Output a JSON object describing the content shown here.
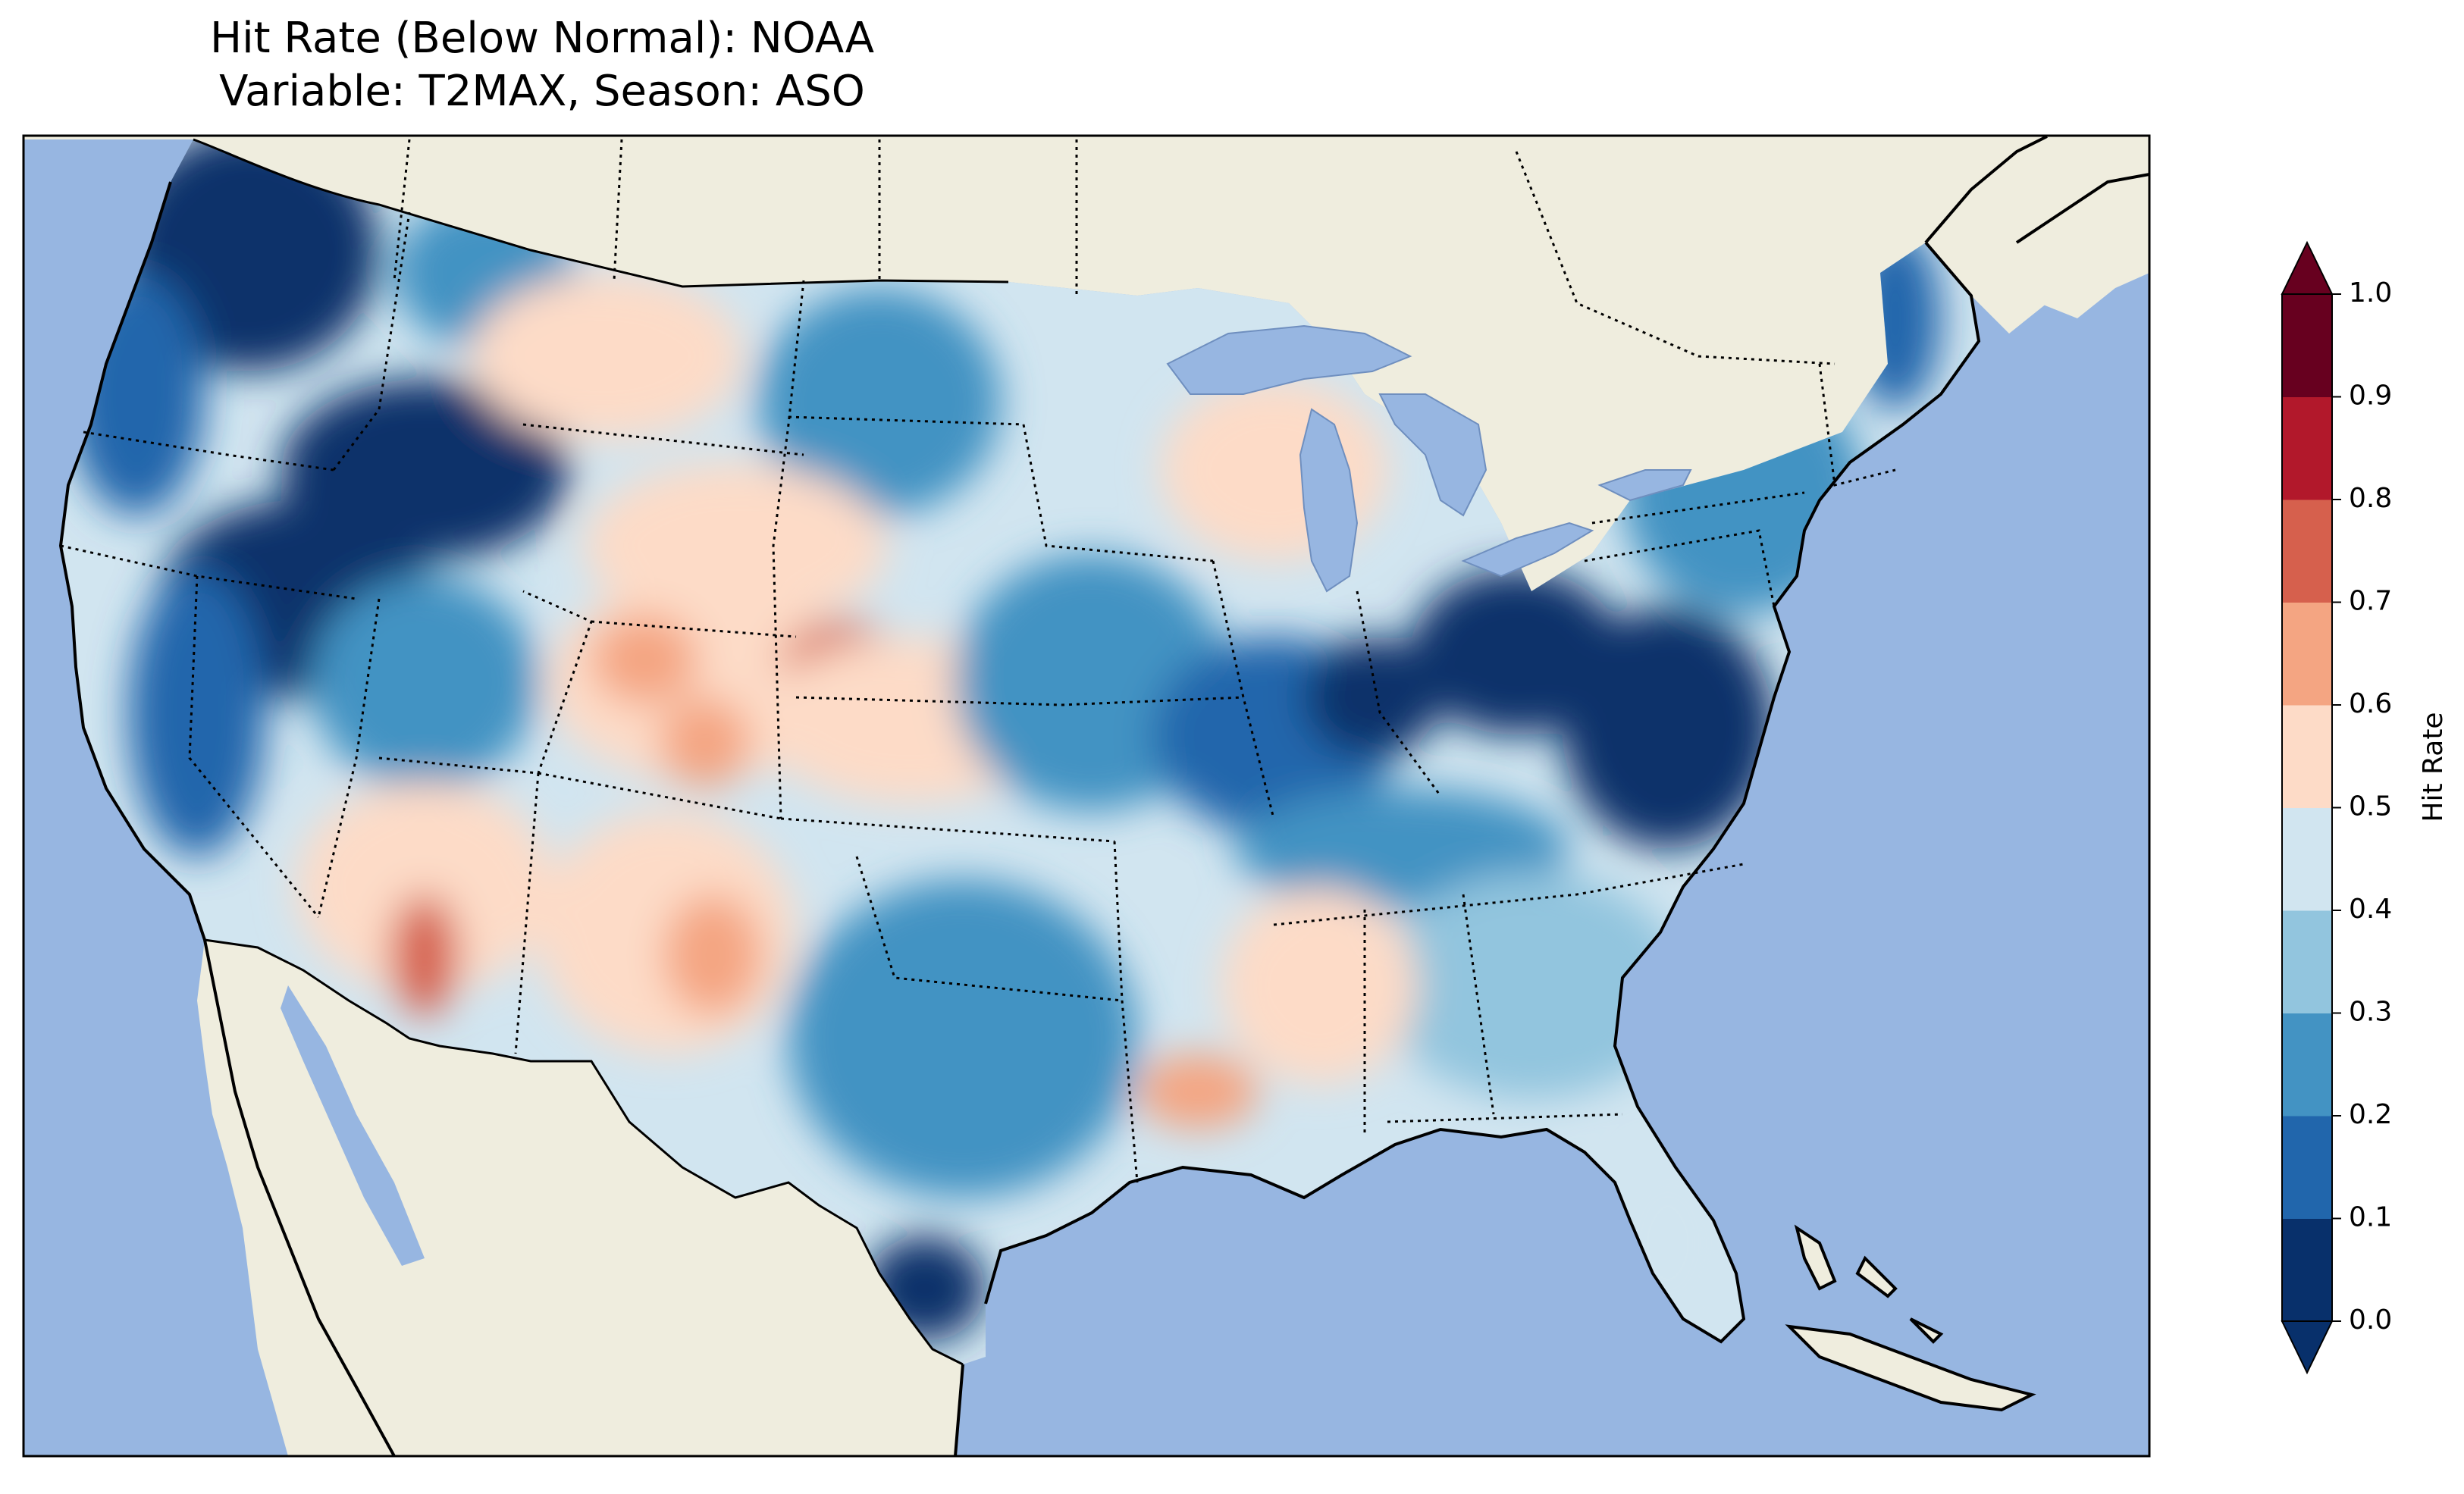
{
  "title": {
    "line1": "Hit Rate (Below Normal): NOAA",
    "line2": "Variable: T2MAX, Season: ASO"
  },
  "colors": {
    "ocean": "#97b6e1",
    "land": "#efedde",
    "lakes": "#97b6e1",
    "bins": [
      "#08306b",
      "#2166ac",
      "#4393c3",
      "#92c5de",
      "#d1e5f0",
      "#fddbc7",
      "#f4a582",
      "#d6604d",
      "#b2182b",
      "#67001f"
    ]
  },
  "colorbar": {
    "label": "Hit Rate",
    "ticks": [
      "0.0",
      "0.1",
      "0.2",
      "0.3",
      "0.4",
      "0.5",
      "0.6",
      "0.7",
      "0.8",
      "0.9",
      "1.0"
    ],
    "min": 0.0,
    "max": 1.0,
    "extend": "both"
  },
  "map": {
    "region": "Continental United States",
    "projection": "Lambert conformal",
    "field": "hit rate, below-normal category",
    "regions": [
      {
        "name": "Pacific Northwest coast",
        "value": 0.05
      },
      {
        "name": "Idaho / Eastern Oregon",
        "value": 0.05
      },
      {
        "name": "Northern Nevada",
        "value": 0.05
      },
      {
        "name": "California coast",
        "value": 0.35
      },
      {
        "name": "Central Valley",
        "value": 0.15
      },
      {
        "name": "Montana",
        "value": 0.45
      },
      {
        "name": "Wyoming / Colorado",
        "value": 0.55
      },
      {
        "name": "Nebraska / Colorado border",
        "value": 0.65
      },
      {
        "name": "Arizona",
        "value": 0.55
      },
      {
        "name": "New Mexico",
        "value": 0.55
      },
      {
        "name": "Texas / Oklahoma",
        "value": 0.25
      },
      {
        "name": "South Texas",
        "value": 0.05
      },
      {
        "name": "Louisiana",
        "value": 0.6
      },
      {
        "name": "Missouri / Illinois",
        "value": 0.25
      },
      {
        "name": "Indiana / Ohio",
        "value": 0.05
      },
      {
        "name": "West Virginia / Virginia",
        "value": 0.05
      },
      {
        "name": "Northeast",
        "value": 0.25
      },
      {
        "name": "Maine",
        "value": 0.15
      },
      {
        "name": "Southeast",
        "value": 0.35
      },
      {
        "name": "Florida",
        "value": 0.45
      }
    ]
  }
}
